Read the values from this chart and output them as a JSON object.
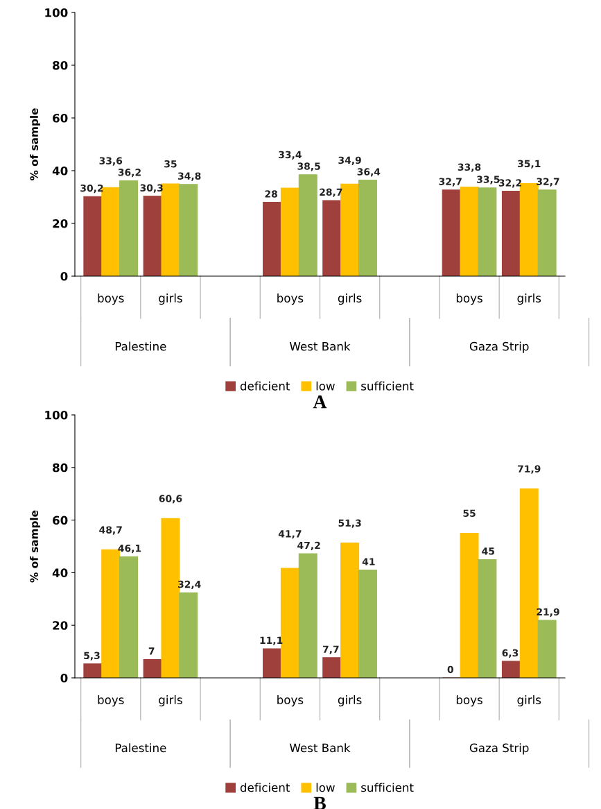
{
  "chart_data": [
    {
      "type": "bar",
      "title": "A",
      "ylabel": "% of sample",
      "categories": [
        "boys",
        "girls",
        null,
        "boys",
        "girls",
        null,
        "boys",
        "girls"
      ],
      "annotations": [
        "Palestine",
        "West Bank",
        "Gaza Strip"
      ],
      "series": [
        {
          "name": "deficient",
          "color": "#a0403c",
          "values": [
            30.2,
            30.3,
            null,
            28,
            28.7,
            null,
            32.7,
            32.2
          ],
          "value_labels": [
            "30,2",
            "30,3",
            null,
            "28",
            "28,7",
            null,
            "32,7",
            "32,2"
          ]
        },
        {
          "name": "low",
          "color": "#ffc000",
          "values": [
            33.6,
            35,
            null,
            33.4,
            34.9,
            null,
            33.8,
            35.1
          ],
          "value_labels": [
            "33,6",
            "35",
            null,
            "33,4",
            "34,9",
            null,
            "33,8",
            "35,1"
          ]
        },
        {
          "name": "sufficient",
          "color": "#9bbb59",
          "values": [
            36.2,
            34.8,
            null,
            38.5,
            36.4,
            null,
            33.5,
            32.7
          ],
          "value_labels": [
            "36,2",
            "34,8",
            null,
            "38,5",
            "36,4",
            null,
            "33,5",
            "32,7"
          ]
        }
      ],
      "ylim": [
        0,
        100
      ],
      "yticks": [
        0,
        20,
        40,
        60,
        80,
        100
      ],
      "grid": false,
      "legend": "bottom"
    },
    {
      "type": "bar",
      "title": "B",
      "ylabel": "% of sample",
      "categories": [
        "boys",
        "girls",
        null,
        "boys",
        "girls",
        null,
        "boys",
        "girls"
      ],
      "annotations": [
        "Palestine",
        "West Bank",
        "Gaza Strip"
      ],
      "series": [
        {
          "name": "deficient",
          "color": "#a0403c",
          "values": [
            5.3,
            7,
            null,
            11.1,
            7.7,
            null,
            0,
            6.3
          ],
          "value_labels": [
            "5,3",
            "7",
            null,
            "11,1",
            "7,7",
            null,
            "0",
            "6,3"
          ]
        },
        {
          "name": "low",
          "color": "#ffc000",
          "values": [
            48.7,
            60.6,
            null,
            41.7,
            51.3,
            null,
            55,
            71.9
          ],
          "value_labels": [
            "48,7",
            "60,6",
            null,
            "41,7",
            "51,3",
            null,
            "55",
            "71,9"
          ]
        },
        {
          "name": "sufficient",
          "color": "#9bbb59",
          "values": [
            46.1,
            32.4,
            null,
            47.2,
            41,
            null,
            45,
            21.9
          ],
          "value_labels": [
            "46,1",
            "32,4",
            null,
            "47,2",
            "41",
            null,
            "45",
            "21,9"
          ]
        }
      ],
      "ylim": [
        0,
        100
      ],
      "yticks": [
        0,
        20,
        40,
        60,
        80,
        100
      ],
      "grid": false,
      "legend": "bottom"
    }
  ]
}
